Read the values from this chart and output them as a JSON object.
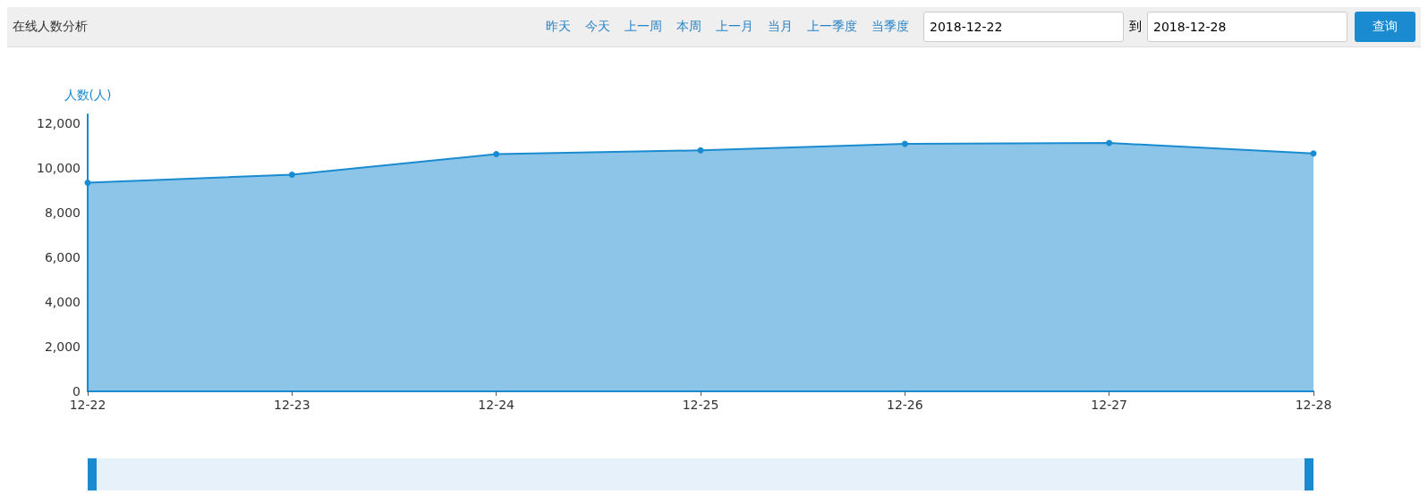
{
  "chart_data": {
    "type": "area",
    "title": "在线人数分析",
    "ylabel": "人数(人)",
    "annotations": [
      "昨天",
      "今天",
      "上一周",
      "本周",
      "上一月",
      "当月",
      "上一季度",
      "当季度",
      "2018-12-22",
      "到",
      "2018-12-28",
      "查询"
    ],
    "categories": [
      "12-22",
      "12-23",
      "12-24",
      "12-25",
      "12-26",
      "12-27",
      "12-28"
    ],
    "series": [
      {
        "color": "#1a8bd0",
        "values": [
          9340,
          9700,
          10620,
          10790,
          11080,
          11120,
          10650
        ]
      }
    ],
    "ylim": [
      0,
      12400
    ],
    "yticks": [
      0,
      {
        "value": 2000,
        "label": "2,000"
      },
      {
        "value": 4000,
        "label": "4,000"
      },
      {
        "value": 6000,
        "label": "6,000"
      },
      {
        "value": 8000,
        "label": "8,000"
      },
      {
        "value": 10000,
        "label": "10,000"
      },
      {
        "value": 12000,
        "label": "12,000"
      }
    ],
    "grid": false,
    "marker": "circle"
  }
}
